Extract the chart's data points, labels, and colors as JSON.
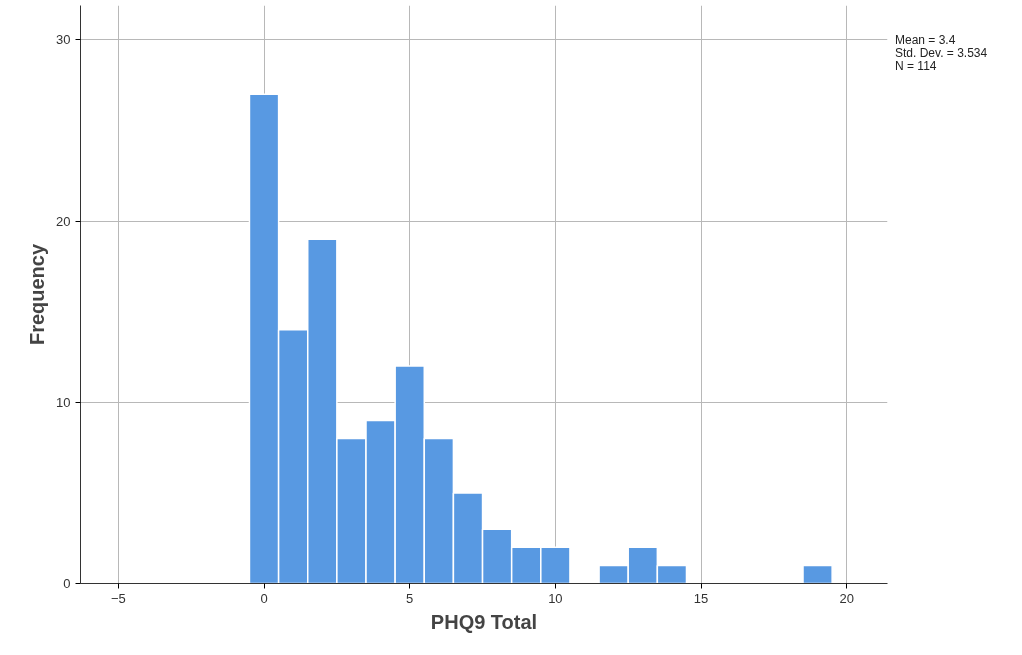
{
  "chart_data": {
    "type": "histogram",
    "xlabel": "PHQ9 Total",
    "ylabel": "Frequency",
    "bins": [
      -0.5,
      0.5,
      1.5,
      2.5,
      3.5,
      4.5,
      5.5,
      6.5,
      7.5,
      8.5,
      9.5,
      10.5,
      11.5,
      12.5,
      13.5,
      14.5,
      15.5,
      16.5,
      17.5,
      18.5,
      19.5
    ],
    "values": [
      27,
      14,
      19,
      8,
      9,
      12,
      8,
      5,
      3,
      2,
      2,
      0,
      1,
      2,
      1,
      0,
      0,
      0,
      0,
      1
    ],
    "color": "#5899e2",
    "xlim": [
      -6.3,
      21.4
    ],
    "xticks": [
      -5,
      0,
      5,
      10,
      15,
      20
    ],
    "ylim": [
      0,
      31.9
    ],
    "yticks": [
      0,
      10,
      20,
      30
    ],
    "grid": true,
    "annotations": [
      "Mean = 3.4",
      "Std. Dev. = 3.534",
      "N = 114"
    ]
  }
}
